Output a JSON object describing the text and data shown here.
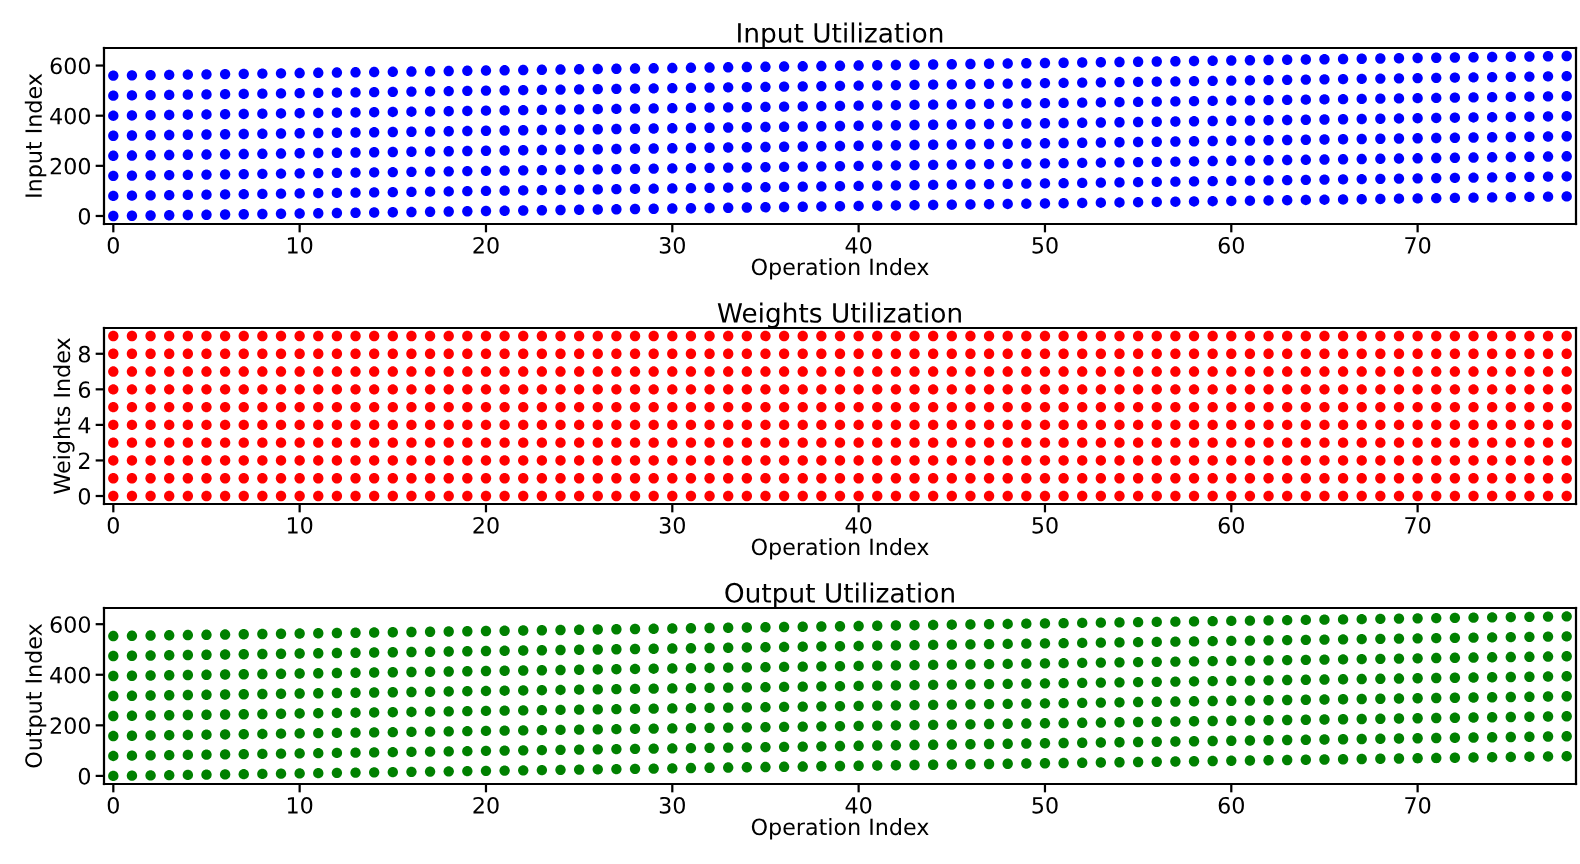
{
  "chart_data": [
    {
      "type": "scatter",
      "title": "Input Utilization",
      "xlabel": "Operation Index",
      "ylabel": "Input Index",
      "marker": "circle",
      "xlim": [
        -0.5,
        78.5
      ],
      "ylim": [
        -32,
        670
      ],
      "xticks": [
        0,
        10,
        20,
        30,
        40,
        50,
        60,
        70
      ],
      "yticks": [
        0,
        200,
        400,
        600
      ],
      "x": [
        0,
        1,
        2,
        3,
        4,
        5,
        6,
        7,
        8,
        9,
        10,
        11,
        12,
        13,
        14,
        15,
        16,
        17,
        18,
        19,
        20,
        21,
        22,
        23,
        24,
        25,
        26,
        27,
        28,
        29,
        30,
        31,
        32,
        33,
        34,
        35,
        36,
        37,
        38,
        39,
        40,
        41,
        42,
        43,
        44,
        45,
        46,
        47,
        48,
        49,
        50,
        51,
        52,
        53,
        54,
        55,
        56,
        57,
        58,
        59,
        60,
        61,
        62,
        63,
        64,
        65,
        66,
        67,
        68,
        69,
        70,
        71,
        72,
        73,
        74,
        75,
        76,
        77,
        78
      ],
      "series": [
        {
          "color": "#0000ff",
          "values": [
            0,
            1,
            2,
            3,
            4,
            5,
            6,
            7,
            8,
            9,
            10,
            11,
            12,
            13,
            14,
            15,
            16,
            17,
            18,
            19,
            20,
            21,
            22,
            23,
            24,
            25,
            26,
            27,
            28,
            29,
            30,
            31,
            32,
            33,
            34,
            35,
            36,
            37,
            38,
            39,
            40,
            41,
            42,
            43,
            44,
            45,
            46,
            47,
            48,
            49,
            50,
            51,
            52,
            53,
            54,
            55,
            56,
            57,
            58,
            59,
            60,
            61,
            62,
            63,
            64,
            65,
            66,
            67,
            68,
            69,
            70,
            71,
            72,
            73,
            74,
            75,
            76,
            77,
            78
          ]
        },
        {
          "color": "#0000ff",
          "values": [
            80,
            81,
            82,
            83,
            84,
            85,
            86,
            87,
            88,
            89,
            90,
            91,
            92,
            93,
            94,
            95,
            96,
            97,
            98,
            99,
            100,
            101,
            102,
            103,
            104,
            105,
            106,
            107,
            108,
            109,
            110,
            111,
            112,
            113,
            114,
            115,
            116,
            117,
            118,
            119,
            120,
            121,
            122,
            123,
            124,
            125,
            126,
            127,
            128,
            129,
            130,
            131,
            132,
            133,
            134,
            135,
            136,
            137,
            138,
            139,
            140,
            141,
            142,
            143,
            144,
            145,
            146,
            147,
            148,
            149,
            150,
            151,
            152,
            153,
            154,
            155,
            156,
            157,
            158
          ]
        },
        {
          "color": "#0000ff",
          "values": [
            160,
            161,
            162,
            163,
            164,
            165,
            166,
            167,
            168,
            169,
            170,
            171,
            172,
            173,
            174,
            175,
            176,
            177,
            178,
            179,
            180,
            181,
            182,
            183,
            184,
            185,
            186,
            187,
            188,
            189,
            190,
            191,
            192,
            193,
            194,
            195,
            196,
            197,
            198,
            199,
            200,
            201,
            202,
            203,
            204,
            205,
            206,
            207,
            208,
            209,
            210,
            211,
            212,
            213,
            214,
            215,
            216,
            217,
            218,
            219,
            220,
            221,
            222,
            223,
            224,
            225,
            226,
            227,
            228,
            229,
            230,
            231,
            232,
            233,
            234,
            235,
            236,
            237,
            238
          ]
        },
        {
          "color": "#0000ff",
          "values": [
            240,
            241,
            242,
            243,
            244,
            245,
            246,
            247,
            248,
            249,
            250,
            251,
            252,
            253,
            254,
            255,
            256,
            257,
            258,
            259,
            260,
            261,
            262,
            263,
            264,
            265,
            266,
            267,
            268,
            269,
            270,
            271,
            272,
            273,
            274,
            275,
            276,
            277,
            278,
            279,
            280,
            281,
            282,
            283,
            284,
            285,
            286,
            287,
            288,
            289,
            290,
            291,
            292,
            293,
            294,
            295,
            296,
            297,
            298,
            299,
            300,
            301,
            302,
            303,
            304,
            305,
            306,
            307,
            308,
            309,
            310,
            311,
            312,
            313,
            314,
            315,
            316,
            317,
            318
          ]
        },
        {
          "color": "#0000ff",
          "values": [
            320,
            321,
            322,
            323,
            324,
            325,
            326,
            327,
            328,
            329,
            330,
            331,
            332,
            333,
            334,
            335,
            336,
            337,
            338,
            339,
            340,
            341,
            342,
            343,
            344,
            345,
            346,
            347,
            348,
            349,
            350,
            351,
            352,
            353,
            354,
            355,
            356,
            357,
            358,
            359,
            360,
            361,
            362,
            363,
            364,
            365,
            366,
            367,
            368,
            369,
            370,
            371,
            372,
            373,
            374,
            375,
            376,
            377,
            378,
            379,
            380,
            381,
            382,
            383,
            384,
            385,
            386,
            387,
            388,
            389,
            390,
            391,
            392,
            393,
            394,
            395,
            396,
            397,
            398
          ]
        },
        {
          "color": "#0000ff",
          "values": [
            400,
            401,
            402,
            403,
            404,
            405,
            406,
            407,
            408,
            409,
            410,
            411,
            412,
            413,
            414,
            415,
            416,
            417,
            418,
            419,
            420,
            421,
            422,
            423,
            424,
            425,
            426,
            427,
            428,
            429,
            430,
            431,
            432,
            433,
            434,
            435,
            436,
            437,
            438,
            439,
            440,
            441,
            442,
            443,
            444,
            445,
            446,
            447,
            448,
            449,
            450,
            451,
            452,
            453,
            454,
            455,
            456,
            457,
            458,
            459,
            460,
            461,
            462,
            463,
            464,
            465,
            466,
            467,
            468,
            469,
            470,
            471,
            472,
            473,
            474,
            475,
            476,
            477,
            478
          ]
        },
        {
          "color": "#0000ff",
          "values": [
            480,
            481,
            482,
            483,
            484,
            485,
            486,
            487,
            488,
            489,
            490,
            491,
            492,
            493,
            494,
            495,
            496,
            497,
            498,
            499,
            500,
            501,
            502,
            503,
            504,
            505,
            506,
            507,
            508,
            509,
            510,
            511,
            512,
            513,
            514,
            515,
            516,
            517,
            518,
            519,
            520,
            521,
            522,
            523,
            524,
            525,
            526,
            527,
            528,
            529,
            530,
            531,
            532,
            533,
            534,
            535,
            536,
            537,
            538,
            539,
            540,
            541,
            542,
            543,
            544,
            545,
            546,
            547,
            548,
            549,
            550,
            551,
            552,
            553,
            554,
            555,
            556,
            557,
            558
          ]
        },
        {
          "color": "#0000ff",
          "values": [
            560,
            561,
            562,
            563,
            564,
            565,
            566,
            567,
            568,
            569,
            570,
            571,
            572,
            573,
            574,
            575,
            576,
            577,
            578,
            579,
            580,
            581,
            582,
            583,
            584,
            585,
            586,
            587,
            588,
            589,
            590,
            591,
            592,
            593,
            594,
            595,
            596,
            597,
            598,
            599,
            600,
            601,
            602,
            603,
            604,
            605,
            606,
            607,
            608,
            609,
            610,
            611,
            612,
            613,
            614,
            615,
            616,
            617,
            618,
            619,
            620,
            621,
            622,
            623,
            624,
            625,
            626,
            627,
            628,
            629,
            630,
            631,
            632,
            633,
            634,
            635,
            636,
            637,
            638
          ]
        }
      ]
    },
    {
      "type": "scatter",
      "title": "Weights Utilization",
      "xlabel": "Operation Index",
      "ylabel": "Weights Index",
      "marker": "circle",
      "xlim": [
        -0.5,
        78.5
      ],
      "ylim": [
        -0.45,
        9.45
      ],
      "xticks": [
        0,
        10,
        20,
        30,
        40,
        50,
        60,
        70
      ],
      "yticks": [
        0,
        2,
        4,
        6,
        8
      ],
      "x": [
        0,
        1,
        2,
        3,
        4,
        5,
        6,
        7,
        8,
        9,
        10,
        11,
        12,
        13,
        14,
        15,
        16,
        17,
        18,
        19,
        20,
        21,
        22,
        23,
        24,
        25,
        26,
        27,
        28,
        29,
        30,
        31,
        32,
        33,
        34,
        35,
        36,
        37,
        38,
        39,
        40,
        41,
        42,
        43,
        44,
        45,
        46,
        47,
        48,
        49,
        50,
        51,
        52,
        53,
        54,
        55,
        56,
        57,
        58,
        59,
        60,
        61,
        62,
        63,
        64,
        65,
        66,
        67,
        68,
        69,
        70,
        71,
        72,
        73,
        74,
        75,
        76,
        77,
        78
      ],
      "series": [
        {
          "color": "#ff0000",
          "values": [
            0,
            0,
            0,
            0,
            0,
            0,
            0,
            0,
            0,
            0,
            0,
            0,
            0,
            0,
            0,
            0,
            0,
            0,
            0,
            0,
            0,
            0,
            0,
            0,
            0,
            0,
            0,
            0,
            0,
            0,
            0,
            0,
            0,
            0,
            0,
            0,
            0,
            0,
            0,
            0,
            0,
            0,
            0,
            0,
            0,
            0,
            0,
            0,
            0,
            0,
            0,
            0,
            0,
            0,
            0,
            0,
            0,
            0,
            0,
            0,
            0,
            0,
            0,
            0,
            0,
            0,
            0,
            0,
            0,
            0,
            0,
            0,
            0,
            0,
            0,
            0,
            0,
            0,
            0
          ]
        },
        {
          "color": "#ff0000",
          "values": [
            1,
            1,
            1,
            1,
            1,
            1,
            1,
            1,
            1,
            1,
            1,
            1,
            1,
            1,
            1,
            1,
            1,
            1,
            1,
            1,
            1,
            1,
            1,
            1,
            1,
            1,
            1,
            1,
            1,
            1,
            1,
            1,
            1,
            1,
            1,
            1,
            1,
            1,
            1,
            1,
            1,
            1,
            1,
            1,
            1,
            1,
            1,
            1,
            1,
            1,
            1,
            1,
            1,
            1,
            1,
            1,
            1,
            1,
            1,
            1,
            1,
            1,
            1,
            1,
            1,
            1,
            1,
            1,
            1,
            1,
            1,
            1,
            1,
            1,
            1,
            1,
            1,
            1,
            1
          ]
        },
        {
          "color": "#ff0000",
          "values": [
            2,
            2,
            2,
            2,
            2,
            2,
            2,
            2,
            2,
            2,
            2,
            2,
            2,
            2,
            2,
            2,
            2,
            2,
            2,
            2,
            2,
            2,
            2,
            2,
            2,
            2,
            2,
            2,
            2,
            2,
            2,
            2,
            2,
            2,
            2,
            2,
            2,
            2,
            2,
            2,
            2,
            2,
            2,
            2,
            2,
            2,
            2,
            2,
            2,
            2,
            2,
            2,
            2,
            2,
            2,
            2,
            2,
            2,
            2,
            2,
            2,
            2,
            2,
            2,
            2,
            2,
            2,
            2,
            2,
            2,
            2,
            2,
            2,
            2,
            2,
            2,
            2,
            2,
            2
          ]
        },
        {
          "color": "#ff0000",
          "values": [
            3,
            3,
            3,
            3,
            3,
            3,
            3,
            3,
            3,
            3,
            3,
            3,
            3,
            3,
            3,
            3,
            3,
            3,
            3,
            3,
            3,
            3,
            3,
            3,
            3,
            3,
            3,
            3,
            3,
            3,
            3,
            3,
            3,
            3,
            3,
            3,
            3,
            3,
            3,
            3,
            3,
            3,
            3,
            3,
            3,
            3,
            3,
            3,
            3,
            3,
            3,
            3,
            3,
            3,
            3,
            3,
            3,
            3,
            3,
            3,
            3,
            3,
            3,
            3,
            3,
            3,
            3,
            3,
            3,
            3,
            3,
            3,
            3,
            3,
            3,
            3,
            3,
            3,
            3
          ]
        },
        {
          "color": "#ff0000",
          "values": [
            4,
            4,
            4,
            4,
            4,
            4,
            4,
            4,
            4,
            4,
            4,
            4,
            4,
            4,
            4,
            4,
            4,
            4,
            4,
            4,
            4,
            4,
            4,
            4,
            4,
            4,
            4,
            4,
            4,
            4,
            4,
            4,
            4,
            4,
            4,
            4,
            4,
            4,
            4,
            4,
            4,
            4,
            4,
            4,
            4,
            4,
            4,
            4,
            4,
            4,
            4,
            4,
            4,
            4,
            4,
            4,
            4,
            4,
            4,
            4,
            4,
            4,
            4,
            4,
            4,
            4,
            4,
            4,
            4,
            4,
            4,
            4,
            4,
            4,
            4,
            4,
            4,
            4,
            4
          ]
        },
        {
          "color": "#ff0000",
          "values": [
            5,
            5,
            5,
            5,
            5,
            5,
            5,
            5,
            5,
            5,
            5,
            5,
            5,
            5,
            5,
            5,
            5,
            5,
            5,
            5,
            5,
            5,
            5,
            5,
            5,
            5,
            5,
            5,
            5,
            5,
            5,
            5,
            5,
            5,
            5,
            5,
            5,
            5,
            5,
            5,
            5,
            5,
            5,
            5,
            5,
            5,
            5,
            5,
            5,
            5,
            5,
            5,
            5,
            5,
            5,
            5,
            5,
            5,
            5,
            5,
            5,
            5,
            5,
            5,
            5,
            5,
            5,
            5,
            5,
            5,
            5,
            5,
            5,
            5,
            5,
            5,
            5,
            5,
            5
          ]
        },
        {
          "color": "#ff0000",
          "values": [
            6,
            6,
            6,
            6,
            6,
            6,
            6,
            6,
            6,
            6,
            6,
            6,
            6,
            6,
            6,
            6,
            6,
            6,
            6,
            6,
            6,
            6,
            6,
            6,
            6,
            6,
            6,
            6,
            6,
            6,
            6,
            6,
            6,
            6,
            6,
            6,
            6,
            6,
            6,
            6,
            6,
            6,
            6,
            6,
            6,
            6,
            6,
            6,
            6,
            6,
            6,
            6,
            6,
            6,
            6,
            6,
            6,
            6,
            6,
            6,
            6,
            6,
            6,
            6,
            6,
            6,
            6,
            6,
            6,
            6,
            6,
            6,
            6,
            6,
            6,
            6,
            6,
            6,
            6
          ]
        },
        {
          "color": "#ff0000",
          "values": [
            7,
            7,
            7,
            7,
            7,
            7,
            7,
            7,
            7,
            7,
            7,
            7,
            7,
            7,
            7,
            7,
            7,
            7,
            7,
            7,
            7,
            7,
            7,
            7,
            7,
            7,
            7,
            7,
            7,
            7,
            7,
            7,
            7,
            7,
            7,
            7,
            7,
            7,
            7,
            7,
            7,
            7,
            7,
            7,
            7,
            7,
            7,
            7,
            7,
            7,
            7,
            7,
            7,
            7,
            7,
            7,
            7,
            7,
            7,
            7,
            7,
            7,
            7,
            7,
            7,
            7,
            7,
            7,
            7,
            7,
            7,
            7,
            7,
            7,
            7,
            7,
            7,
            7,
            7
          ]
        },
        {
          "color": "#ff0000",
          "values": [
            8,
            8,
            8,
            8,
            8,
            8,
            8,
            8,
            8,
            8,
            8,
            8,
            8,
            8,
            8,
            8,
            8,
            8,
            8,
            8,
            8,
            8,
            8,
            8,
            8,
            8,
            8,
            8,
            8,
            8,
            8,
            8,
            8,
            8,
            8,
            8,
            8,
            8,
            8,
            8,
            8,
            8,
            8,
            8,
            8,
            8,
            8,
            8,
            8,
            8,
            8,
            8,
            8,
            8,
            8,
            8,
            8,
            8,
            8,
            8,
            8,
            8,
            8,
            8,
            8,
            8,
            8,
            8,
            8,
            8,
            8,
            8,
            8,
            8,
            8,
            8,
            8,
            8,
            8
          ]
        },
        {
          "color": "#ff0000",
          "values": [
            9,
            9,
            9,
            9,
            9,
            9,
            9,
            9,
            9,
            9,
            9,
            9,
            9,
            9,
            9,
            9,
            9,
            9,
            9,
            9,
            9,
            9,
            9,
            9,
            9,
            9,
            9,
            9,
            9,
            9,
            9,
            9,
            9,
            9,
            9,
            9,
            9,
            9,
            9,
            9,
            9,
            9,
            9,
            9,
            9,
            9,
            9,
            9,
            9,
            9,
            9,
            9,
            9,
            9,
            9,
            9,
            9,
            9,
            9,
            9,
            9,
            9,
            9,
            9,
            9,
            9,
            9,
            9,
            9,
            9,
            9,
            9,
            9,
            9,
            9,
            9,
            9,
            9,
            9
          ]
        }
      ]
    },
    {
      "type": "scatter",
      "title": "Output Utilization",
      "xlabel": "Operation Index",
      "ylabel": "Output Index",
      "marker": "circle",
      "xlim": [
        -0.5,
        78.5
      ],
      "ylim": [
        -32,
        664
      ],
      "xticks": [
        0,
        10,
        20,
        30,
        40,
        50,
        60,
        70
      ],
      "yticks": [
        0,
        200,
        400,
        600
      ],
      "x": [
        0,
        1,
        2,
        3,
        4,
        5,
        6,
        7,
        8,
        9,
        10,
        11,
        12,
        13,
        14,
        15,
        16,
        17,
        18,
        19,
        20,
        21,
        22,
        23,
        24,
        25,
        26,
        27,
        28,
        29,
        30,
        31,
        32,
        33,
        34,
        35,
        36,
        37,
        38,
        39,
        40,
        41,
        42,
        43,
        44,
        45,
        46,
        47,
        48,
        49,
        50,
        51,
        52,
        53,
        54,
        55,
        56,
        57,
        58,
        59,
        60,
        61,
        62,
        63,
        64,
        65,
        66,
        67,
        68,
        69,
        70,
        71,
        72,
        73,
        74,
        75,
        76,
        77,
        78
      ],
      "series": [
        {
          "color": "#008000",
          "values": [
            0,
            1,
            2,
            3,
            4,
            5,
            6,
            7,
            8,
            9,
            10,
            11,
            12,
            13,
            14,
            15,
            16,
            17,
            18,
            19,
            20,
            21,
            22,
            23,
            24,
            25,
            26,
            27,
            28,
            29,
            30,
            31,
            32,
            33,
            34,
            35,
            36,
            37,
            38,
            39,
            40,
            41,
            42,
            43,
            44,
            45,
            46,
            47,
            48,
            49,
            50,
            51,
            52,
            53,
            54,
            55,
            56,
            57,
            58,
            59,
            60,
            61,
            62,
            63,
            64,
            65,
            66,
            67,
            68,
            69,
            70,
            71,
            72,
            73,
            74,
            75,
            76,
            77,
            78
          ]
        },
        {
          "color": "#008000",
          "values": [
            79,
            80,
            81,
            82,
            83,
            84,
            85,
            86,
            87,
            88,
            89,
            90,
            91,
            92,
            93,
            94,
            95,
            96,
            97,
            98,
            99,
            100,
            101,
            102,
            103,
            104,
            105,
            106,
            107,
            108,
            109,
            110,
            111,
            112,
            113,
            114,
            115,
            116,
            117,
            118,
            119,
            120,
            121,
            122,
            123,
            124,
            125,
            126,
            127,
            128,
            129,
            130,
            131,
            132,
            133,
            134,
            135,
            136,
            137,
            138,
            139,
            140,
            141,
            142,
            143,
            144,
            145,
            146,
            147,
            148,
            149,
            150,
            151,
            152,
            153,
            154,
            155,
            156,
            157
          ]
        },
        {
          "color": "#008000",
          "values": [
            158,
            159,
            160,
            161,
            162,
            163,
            164,
            165,
            166,
            167,
            168,
            169,
            170,
            171,
            172,
            173,
            174,
            175,
            176,
            177,
            178,
            179,
            180,
            181,
            182,
            183,
            184,
            185,
            186,
            187,
            188,
            189,
            190,
            191,
            192,
            193,
            194,
            195,
            196,
            197,
            198,
            199,
            200,
            201,
            202,
            203,
            204,
            205,
            206,
            207,
            208,
            209,
            210,
            211,
            212,
            213,
            214,
            215,
            216,
            217,
            218,
            219,
            220,
            221,
            222,
            223,
            224,
            225,
            226,
            227,
            228,
            229,
            230,
            231,
            232,
            233,
            234,
            235,
            236
          ]
        },
        {
          "color": "#008000",
          "values": [
            237,
            238,
            239,
            240,
            241,
            242,
            243,
            244,
            245,
            246,
            247,
            248,
            249,
            250,
            251,
            252,
            253,
            254,
            255,
            256,
            257,
            258,
            259,
            260,
            261,
            262,
            263,
            264,
            265,
            266,
            267,
            268,
            269,
            270,
            271,
            272,
            273,
            274,
            275,
            276,
            277,
            278,
            279,
            280,
            281,
            282,
            283,
            284,
            285,
            286,
            287,
            288,
            289,
            290,
            291,
            292,
            293,
            294,
            295,
            296,
            297,
            298,
            299,
            300,
            301,
            302,
            303,
            304,
            305,
            306,
            307,
            308,
            309,
            310,
            311,
            312,
            313,
            314,
            315
          ]
        },
        {
          "color": "#008000",
          "values": [
            316,
            317,
            318,
            319,
            320,
            321,
            322,
            323,
            324,
            325,
            326,
            327,
            328,
            329,
            330,
            331,
            332,
            333,
            334,
            335,
            336,
            337,
            338,
            339,
            340,
            341,
            342,
            343,
            344,
            345,
            346,
            347,
            348,
            349,
            350,
            351,
            352,
            353,
            354,
            355,
            356,
            357,
            358,
            359,
            360,
            361,
            362,
            363,
            364,
            365,
            366,
            367,
            368,
            369,
            370,
            371,
            372,
            373,
            374,
            375,
            376,
            377,
            378,
            379,
            380,
            381,
            382,
            383,
            384,
            385,
            386,
            387,
            388,
            389,
            390,
            391,
            392,
            393,
            394
          ]
        },
        {
          "color": "#008000",
          "values": [
            395,
            396,
            397,
            398,
            399,
            400,
            401,
            402,
            403,
            404,
            405,
            406,
            407,
            408,
            409,
            410,
            411,
            412,
            413,
            414,
            415,
            416,
            417,
            418,
            419,
            420,
            421,
            422,
            423,
            424,
            425,
            426,
            427,
            428,
            429,
            430,
            431,
            432,
            433,
            434,
            435,
            436,
            437,
            438,
            439,
            440,
            441,
            442,
            443,
            444,
            445,
            446,
            447,
            448,
            449,
            450,
            451,
            452,
            453,
            454,
            455,
            456,
            457,
            458,
            459,
            460,
            461,
            462,
            463,
            464,
            465,
            466,
            467,
            468,
            469,
            470,
            471,
            472,
            473
          ]
        },
        {
          "color": "#008000",
          "values": [
            474,
            475,
            476,
            477,
            478,
            479,
            480,
            481,
            482,
            483,
            484,
            485,
            486,
            487,
            488,
            489,
            490,
            491,
            492,
            493,
            494,
            495,
            496,
            497,
            498,
            499,
            500,
            501,
            502,
            503,
            504,
            505,
            506,
            507,
            508,
            509,
            510,
            511,
            512,
            513,
            514,
            515,
            516,
            517,
            518,
            519,
            520,
            521,
            522,
            523,
            524,
            525,
            526,
            527,
            528,
            529,
            530,
            531,
            532,
            533,
            534,
            535,
            536,
            537,
            538,
            539,
            540,
            541,
            542,
            543,
            544,
            545,
            546,
            547,
            548,
            549,
            550,
            551,
            552
          ]
        },
        {
          "color": "#008000",
          "values": [
            553,
            554,
            555,
            556,
            557,
            558,
            559,
            560,
            561,
            562,
            563,
            564,
            565,
            566,
            567,
            568,
            569,
            570,
            571,
            572,
            573,
            574,
            575,
            576,
            577,
            578,
            579,
            580,
            581,
            582,
            583,
            584,
            585,
            586,
            587,
            588,
            589,
            590,
            591,
            592,
            593,
            594,
            595,
            596,
            597,
            598,
            599,
            600,
            601,
            602,
            603,
            604,
            605,
            606,
            607,
            608,
            609,
            610,
            611,
            612,
            613,
            614,
            615,
            616,
            617,
            618,
            619,
            620,
            621,
            622,
            623,
            624,
            625,
            626,
            627,
            628,
            629,
            630,
            631
          ]
        }
      ]
    }
  ]
}
